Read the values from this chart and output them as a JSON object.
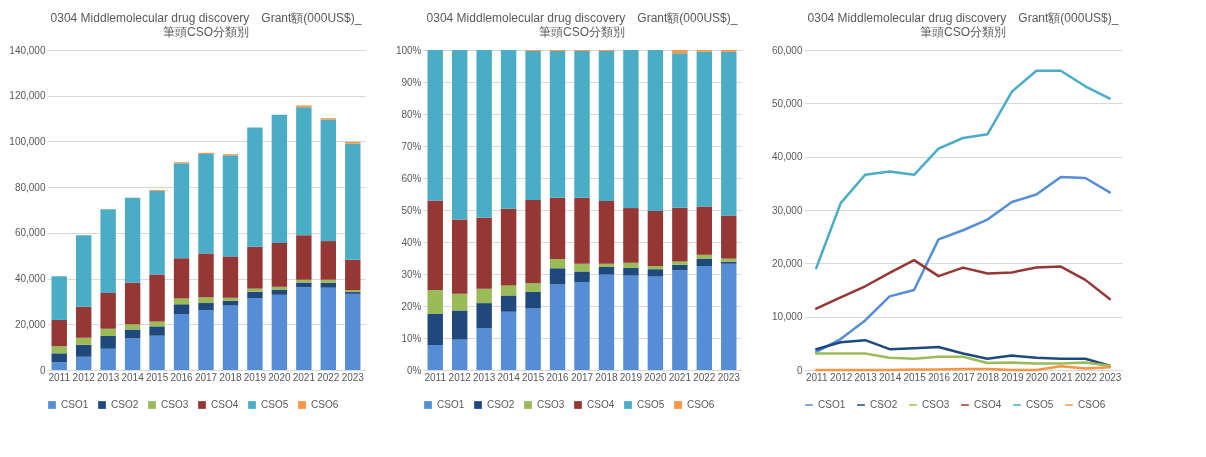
{
  "chart_data": [
    {
      "type": "bar",
      "stacked": true,
      "title": "0304 Middlemolecular drug discovery　Grant額(000US$)_\n筆頭CSO分類別",
      "categories": [
        "2011",
        "2012",
        "2013",
        "2014",
        "2015",
        "2016",
        "2017",
        "2018",
        "2019",
        "2020",
        "2021",
        "2022",
        "2023"
      ],
      "ylim": [
        0,
        140000
      ],
      "yticks": [
        0,
        {
          "value": 20000,
          "label": "20,000"
        },
        {
          "value": 40000,
          "label": "40,000"
        },
        {
          "value": 60000,
          "label": "60,000"
        },
        {
          "value": 80000,
          "label": "80,000"
        },
        {
          "value": 100000,
          "label": "100,000"
        },
        {
          "value": 120000,
          "label": "120,000"
        },
        {
          "value": 140000,
          "label": "140,000"
        }
      ],
      "grid": "y",
      "legend": "bottom",
      "series": [
        {
          "name": "CSO1",
          "color": "#558ed5",
          "values": [
            3400,
            5800,
            9300,
            13800,
            15000,
            24500,
            26200,
            28200,
            31500,
            32900,
            36200,
            36000,
            33300
          ]
        },
        {
          "name": "CSO2",
          "color": "#1f497d",
          "values": [
            3900,
            5200,
            5600,
            3900,
            4100,
            4300,
            3100,
            2100,
            2700,
            2300,
            2100,
            2100,
            800
          ]
        },
        {
          "name": "CSO3",
          "color": "#9bbb59",
          "values": [
            3100,
            3100,
            3100,
            2300,
            2100,
            2500,
            2500,
            1300,
            1400,
            1200,
            1200,
            1400,
            800
          ]
        },
        {
          "name": "CSO4",
          "color": "#953735",
          "values": [
            11500,
            13600,
            15700,
            18200,
            20600,
            17600,
            19200,
            18100,
            18300,
            19200,
            19400,
            16900,
            13300
          ]
        },
        {
          "name": "CSO5",
          "color": "#4bacc6",
          "values": [
            19100,
            31300,
            36600,
            37200,
            36600,
            41500,
            43500,
            44200,
            52200,
            56100,
            56100,
            53200,
            50900
          ]
        },
        {
          "name": "CSO6",
          "color": "#f79646",
          "values": [
            0,
            0,
            0,
            0,
            400,
            500,
            500,
            500,
            0,
            0,
            700,
            600,
            700
          ]
        }
      ]
    },
    {
      "type": "bar",
      "stacked": true,
      "title": "0304 Middlemolecular drug discovery　Grant額(000US$)_\n筆頭CSO分類別",
      "categories": [
        "2011",
        "2012",
        "2013",
        "2014",
        "2015",
        "2016",
        "2017",
        "2018",
        "2019",
        "2020",
        "2021",
        "2022",
        "2023"
      ],
      "ylim": [
        0,
        100
      ],
      "yticks": [
        {
          "value": 0,
          "label": "0%"
        },
        {
          "value": 10,
          "label": "10%"
        },
        {
          "value": 20,
          "label": "20%"
        },
        {
          "value": 30,
          "label": "30%"
        },
        {
          "value": 40,
          "label": "40%"
        },
        {
          "value": 50,
          "label": "50%"
        },
        {
          "value": 60,
          "label": "60%"
        },
        {
          "value": 70,
          "label": "70%"
        },
        {
          "value": 80,
          "label": "80%"
        },
        {
          "value": 90,
          "label": "90%"
        },
        {
          "value": 100,
          "label": "100%"
        }
      ],
      "grid": "y",
      "legend": "bottom",
      "series": [
        {
          "name": "CSO1",
          "color": "#558ed5",
          "values": [
            7.8,
            9.5,
            13.1,
            18.2,
            19.2,
            26.7,
            27.4,
            29.8,
            29.5,
            29.2,
            31.2,
            32.5,
            33.2
          ]
        },
        {
          "name": "CSO2",
          "color": "#1f497d",
          "values": [
            9.7,
            9.1,
            7.8,
            5.1,
            5.2,
            5.1,
            3.4,
            2.4,
            2.4,
            2.3,
            1.7,
            2.2,
            0.6
          ]
        },
        {
          "name": "CSO3",
          "color": "#9bbb59",
          "values": [
            7.5,
            5.2,
            4.5,
            3.1,
            2.7,
            2.9,
            2.4,
            1.0,
            1.6,
            1.0,
            1.0,
            1.3,
            1.0
          ]
        },
        {
          "name": "CSO4",
          "color": "#953735",
          "values": [
            28.0,
            23.2,
            22.2,
            24.0,
            26.0,
            19.1,
            20.6,
            19.6,
            17.1,
            17.2,
            16.8,
            15.1,
            13.5
          ]
        },
        {
          "name": "CSO5",
          "color": "#4bacc6",
          "values": [
            47.0,
            53.0,
            52.4,
            49.6,
            46.6,
            45.9,
            45.9,
            46.9,
            49.4,
            50.3,
            48.3,
            48.4,
            51.1
          ]
        },
        {
          "name": "CSO6",
          "color": "#f79646",
          "values": [
            0,
            0,
            0,
            0,
            0.3,
            0.3,
            0.3,
            0.3,
            0,
            0,
            1.0,
            0.5,
            0.6
          ]
        }
      ]
    },
    {
      "type": "line",
      "title": "0304 Middlemolecular drug discovery　Grant額(000US$)_\n筆頭CSO分類別",
      "categories": [
        "2011",
        "2012",
        "2013",
        "2014",
        "2015",
        "2016",
        "2017",
        "2018",
        "2019",
        "2020",
        "2021",
        "2022",
        "2023"
      ],
      "ylim": [
        0,
        60000
      ],
      "yticks": [
        0,
        {
          "value": 10000,
          "label": "10,000"
        },
        {
          "value": 20000,
          "label": "20,000"
        },
        {
          "value": 30000,
          "label": "30,000"
        },
        {
          "value": 40000,
          "label": "40,000"
        },
        {
          "value": 50000,
          "label": "50,000"
        },
        {
          "value": 60000,
          "label": "60,000"
        }
      ],
      "grid": "y",
      "legend": "bottom",
      "marker": "none",
      "series": [
        {
          "name": "CSO1",
          "color": "#558ed5",
          "values": [
            3400,
            5800,
            9300,
            13800,
            15000,
            24500,
            26200,
            28200,
            31500,
            32900,
            36200,
            36000,
            33300
          ]
        },
        {
          "name": "CSO2",
          "color": "#1f497d",
          "values": [
            3900,
            5200,
            5600,
            3900,
            4100,
            4300,
            3100,
            2100,
            2700,
            2300,
            2100,
            2100,
            800
          ]
        },
        {
          "name": "CSO3",
          "color": "#9bbb59",
          "values": [
            3100,
            3100,
            3100,
            2300,
            2100,
            2500,
            2500,
            1300,
            1400,
            1200,
            1200,
            1400,
            800
          ]
        },
        {
          "name": "CSO4",
          "color": "#953735",
          "values": [
            11500,
            13600,
            15700,
            18200,
            20600,
            17600,
            19200,
            18100,
            18300,
            19200,
            19400,
            16900,
            13300
          ]
        },
        {
          "name": "CSO5",
          "color": "#4bacc6",
          "values": [
            19100,
            31300,
            36600,
            37200,
            36600,
            41500,
            43500,
            44200,
            52200,
            56100,
            56100,
            53200,
            50900
          ]
        },
        {
          "name": "CSO6",
          "color": "#f79646",
          "values": [
            0,
            0,
            0,
            0,
            100,
            100,
            200,
            200,
            0,
            0,
            700,
            300,
            500
          ]
        }
      ]
    }
  ]
}
